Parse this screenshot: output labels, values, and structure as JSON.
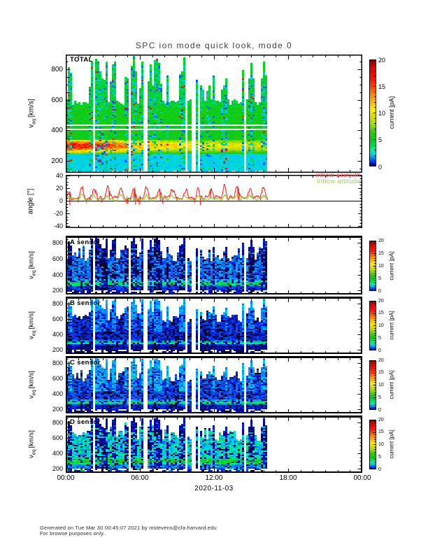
{
  "seed": 1103,
  "page": {
    "title": "SPC ion mode quick look, mode 0",
    "date_label": "2020-11-03",
    "footer_line1": "Generated on Tue Mar 30 00:45:07 2021 by mstevens@cfa.harvard.edu",
    "footer_line2": "For browse purposes only."
  },
  "axis_labels": {
    "velocity_pre": "v",
    "velocity_sub": "eq",
    "velocity_post": "[km/s]",
    "angle": "angle [°]",
    "colorbar": "current [pA]"
  },
  "legend": {
    "azimuth_label": "inflow azimuth",
    "azimuth_color": "#ff6060",
    "attitude_label": "inflow attitude",
    "attitude_color": "#9ed44f"
  },
  "x_axis": {
    "ticks": [
      "00:00",
      "06:00",
      "12:00",
      "18:00",
      "00:00"
    ],
    "hours": 24,
    "major_step_hours": 6,
    "minor_step_hours": 1,
    "data_end_hour": 16.4
  },
  "colorbar": {
    "min": 0,
    "max": 20,
    "ticks": [
      0,
      5,
      10,
      15,
      20
    ],
    "minor_step": 1,
    "stops": [
      [
        0.0,
        "#000000"
      ],
      [
        0.4,
        "#00009a"
      ],
      [
        0.9,
        "#0033ee"
      ],
      [
        1.6,
        "#0080ff"
      ],
      [
        2.3,
        "#00ccee"
      ],
      [
        3.0,
        "#00eeb0"
      ],
      [
        3.8,
        "#00dd55"
      ],
      [
        5.0,
        "#00cc22"
      ],
      [
        6.5,
        "#33cc00"
      ],
      [
        8.0,
        "#99dd00"
      ],
      [
        9.5,
        "#dddd00"
      ],
      [
        10.8,
        "#ffee00"
      ],
      [
        12.0,
        "#ffbb00"
      ],
      [
        13.5,
        "#ff8800"
      ],
      [
        15.0,
        "#ff4400"
      ],
      [
        16.5,
        "#ff1100"
      ],
      [
        18.5,
        "#dd0000"
      ],
      [
        20.0,
        "#8f0000"
      ]
    ]
  },
  "chart_data": [
    {
      "type": "heatmap",
      "id": "total",
      "label": "TOTAL",
      "ylabel": "v_eq [km/s]",
      "yticks": [
        200,
        400,
        600,
        800
      ],
      "ylim": [
        122,
        896
      ],
      "value_label": "current [pA]",
      "value_lim": [
        0,
        20
      ],
      "description": "Total ion current spectrogram; solar wind beam band near 300 km/s, red/orange 15-20 pA before ~05:00 decaying to yellow ~10 pA; green ~5 pA background up to ~580 km/s; cyan ~2 pA below 250 km/s; vertical multicolor stripes and white data-gap columns; data ends ~16:25.",
      "texture": {
        "kind": "total",
        "v_bottom": 135,
        "low_band_top": 250,
        "low_level": 2.2,
        "mid_level": 4.6,
        "band_center": 298,
        "band_width": 38,
        "peak_schedule": [
          [
            0,
            17
          ],
          [
            3,
            16
          ],
          [
            5,
            13
          ],
          [
            7,
            11.5
          ],
          [
            10,
            10.5
          ],
          [
            16.4,
            9.5
          ]
        ],
        "green_top": 558,
        "hline_v": [
          404,
          431
        ],
        "top_stripe_max": 885
      }
    },
    {
      "type": "line",
      "id": "angles",
      "ylabel": "angle [°]",
      "yticks": [
        40,
        20,
        0,
        -20,
        -40
      ],
      "ylim": [
        -43,
        41
      ],
      "y_minor_step": 5,
      "series": [
        {
          "name": "inflow azimuth",
          "color": "#ff2a2a"
        },
        {
          "name": "inflow attitude",
          "color": "#8fcc22"
        }
      ],
      "description": "Inflow angles vs time; azimuth (red) bursts between ~-15 and +30 deg about hourly, attitude (green) 0-15 deg; zero line across full day; data ends ~16:20.",
      "gen": {
        "points": 540,
        "burst_period_h": 1.05,
        "burst_duty": 0.45,
        "az_base": 3.5,
        "az_noise": 4,
        "az_burst": 13,
        "att_base": 1.5,
        "att_noise": 2.5,
        "att_burst": 5
      }
    },
    {
      "type": "heatmap",
      "id": "A",
      "label": "A sensor",
      "ylabel": "v_eq [km/s]",
      "yticks": [
        200,
        400,
        600,
        800
      ],
      "ylim": [
        150,
        890
      ],
      "value_label": "current [pA]",
      "value_lim": [
        0,
        20
      ],
      "description": "Sensor A spectrogram: blue background to ~580 km/s, cyan-green beam band at ~300 km/s, dense black vertical streaks reaching ~850 km/s, white gap columns; data ends ~16:25.",
      "texture": {
        "kind": "sensor",
        "bg": 1.5,
        "bgn": 0.9,
        "band_amp": 3.0,
        "band_center": 300,
        "band_width": 26,
        "boundary": 575,
        "peak_h": 200,
        "spike_style": "dark",
        "speckle": 0.24,
        "low_factor": 0.6
      }
    },
    {
      "type": "heatmap",
      "id": "B",
      "label": "B sensor",
      "ylabel": "v_eq [km/s]",
      "yticks": [
        200,
        400,
        600,
        800
      ],
      "ylim": [
        150,
        890
      ],
      "value_label": "current [pA]",
      "value_lim": [
        0,
        20
      ],
      "description": "Sensor B spectrogram: very dark navy noise to ~580 km/s with jagged peaks to ~720, thin cyan-green band at ~300 km/s, light-blue vertical columns, white gap columns.",
      "texture": {
        "kind": "sensor",
        "bg": 0.85,
        "bgn": 0.55,
        "band_amp": 3.6,
        "band_center": 300,
        "band_width": 16,
        "boundary": 565,
        "peak_h": 150,
        "spike_style": "lightblue",
        "speckle": 0.3,
        "low_factor": 0.6
      }
    },
    {
      "type": "heatmap",
      "id": "C",
      "label": "C sensor",
      "ylabel": "v_eq [km/s]",
      "yticks": [
        200,
        400,
        600,
        800
      ],
      "ylim": [
        150,
        890
      ],
      "value_label": "current [pA]",
      "value_lim": [
        0,
        20
      ],
      "description": "Sensor C spectrogram: dark blue noise to ~580 km/s with jagged peaks, green band at ~300 km/s, light-blue vertical columns, white gap columns.",
      "texture": {
        "kind": "sensor",
        "bg": 1.1,
        "bgn": 0.7,
        "band_amp": 3.8,
        "band_center": 300,
        "band_width": 18,
        "boundary": 570,
        "peak_h": 160,
        "spike_style": "lightblue",
        "speckle": 0.27,
        "low_factor": 0.6
      }
    },
    {
      "type": "heatmap",
      "id": "D",
      "label": "D sensor",
      "ylabel": "v_eq [km/s]",
      "yticks": [
        200,
        400,
        600,
        800
      ],
      "ylim": [
        150,
        890
      ],
      "value_label": "current [pA]",
      "value_lim": [
        0,
        20
      ],
      "description": "Sensor D spectrogram: brighter blue-cyan background with strong green band at ~300 km/s, narrow black vertical spikes to ~850 km/s, white gap columns.",
      "texture": {
        "kind": "sensor",
        "bg": 2.4,
        "bgn": 1.1,
        "band_amp": 3.4,
        "band_center": 300,
        "band_width": 30,
        "boundary": 570,
        "peak_h": 180,
        "spike_style": "dark",
        "speckle": 0.16,
        "cyan_speckle": 0.12,
        "low_factor": 0.6
      }
    }
  ]
}
